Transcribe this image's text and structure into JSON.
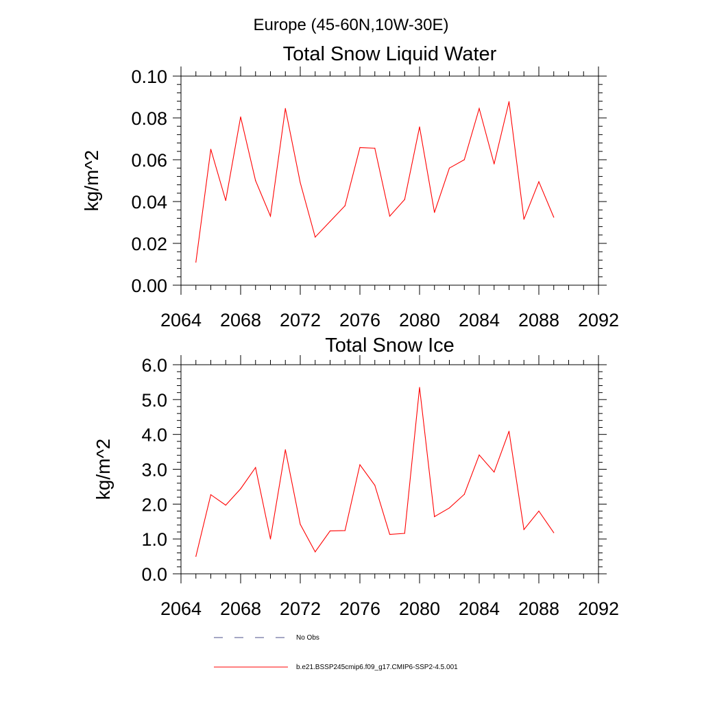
{
  "figure": {
    "suptitle": "Europe (45-60N,10W-30E)"
  },
  "chart_data": [
    {
      "type": "line",
      "title": "Total Snow Liquid Water",
      "xlabel": "",
      "ylabel": "kg/m^2",
      "xlim": [
        2064,
        2092
      ],
      "ylim": [
        0.0,
        0.1
      ],
      "xticks": [
        2064,
        2068,
        2072,
        2076,
        2080,
        2084,
        2088,
        2092
      ],
      "xtick_labels": [
        "2064",
        "2068",
        "2072",
        "2076",
        "2080",
        "2084",
        "2088",
        "2092"
      ],
      "yticks": [
        0.0,
        0.02,
        0.04,
        0.06,
        0.08,
        0.1
      ],
      "ytick_labels": [
        "0.00",
        "0.02",
        "0.04",
        "0.06",
        "0.08",
        "0.10"
      ],
      "grid": false,
      "series": [
        {
          "name": "b.e21.BSSP245cmip6.f09_g17.CMIP6-SSP2-4.5.001",
          "color": "#ff0000",
          "x": [
            2065,
            2066,
            2067,
            2068,
            2069,
            2070,
            2071,
            2072,
            2073,
            2074,
            2075,
            2076,
            2077,
            2078,
            2079,
            2080,
            2081,
            2082,
            2083,
            2084,
            2085,
            2086,
            2087,
            2088,
            2089
          ],
          "y": [
            0.011,
            0.065,
            0.0405,
            0.0805,
            0.05,
            0.033,
            0.0845,
            0.049,
            0.023,
            0.0305,
            0.038,
            0.0658,
            0.0655,
            0.033,
            0.041,
            0.0757,
            0.0348,
            0.056,
            0.06,
            0.0845,
            0.058,
            0.0878,
            0.0315,
            0.0495,
            0.0325
          ]
        }
      ]
    },
    {
      "type": "line",
      "title": "Total Snow Ice",
      "xlabel": "",
      "ylabel": "kg/m^2",
      "xlim": [
        2064,
        2092
      ],
      "ylim": [
        0.0,
        6.0
      ],
      "xticks": [
        2064,
        2068,
        2072,
        2076,
        2080,
        2084,
        2088,
        2092
      ],
      "xtick_labels": [
        "2064",
        "2068",
        "2072",
        "2076",
        "2080",
        "2084",
        "2088",
        "2092"
      ],
      "yticks": [
        0.0,
        1.0,
        2.0,
        3.0,
        4.0,
        5.0,
        6.0
      ],
      "ytick_labels": [
        "0.0",
        "1.0",
        "2.0",
        "3.0",
        "4.0",
        "5.0",
        "6.0"
      ],
      "grid": false,
      "series": [
        {
          "name": "b.e21.BSSP245cmip6.f09_g17.CMIP6-SSP2-4.5.001",
          "color": "#ff0000",
          "x": [
            2065,
            2066,
            2067,
            2068,
            2069,
            2070,
            2071,
            2072,
            2073,
            2074,
            2075,
            2076,
            2077,
            2078,
            2079,
            2080,
            2081,
            2082,
            2083,
            2084,
            2085,
            2086,
            2087,
            2088,
            2089
          ],
          "y": [
            0.5,
            2.27,
            1.97,
            2.44,
            3.05,
            1.0,
            3.56,
            1.42,
            0.63,
            1.23,
            1.24,
            3.13,
            2.54,
            1.13,
            1.16,
            5.35,
            1.64,
            1.89,
            2.28,
            3.41,
            2.92,
            4.09,
            1.27,
            1.8,
            1.18
          ]
        }
      ]
    }
  ],
  "legend": {
    "placement": "bottom",
    "entries": [
      {
        "label": "No Obs",
        "style": "dashed",
        "color": "#4b4f8a"
      },
      {
        "label": "b.e21.BSSP245cmip6.f09_g17.CMIP6-SSP2-4.5.001",
        "style": "solid",
        "color": "#ff0000"
      }
    ]
  }
}
